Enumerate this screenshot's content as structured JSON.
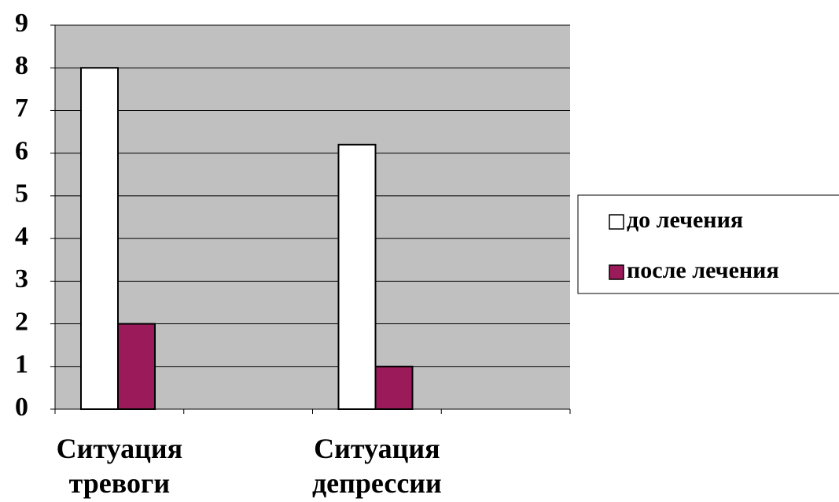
{
  "chart_data": {
    "type": "bar",
    "categories": [
      "Ситуация тревоги",
      null,
      "Ситуация депрессии",
      null
    ],
    "series": [
      {
        "name": "до лечения",
        "color": "#ffffff",
        "values": [
          8,
          null,
          6.2,
          null
        ]
      },
      {
        "name": "после лечения",
        "color": "#9b1b5a",
        "values": [
          2,
          null,
          1,
          null
        ]
      }
    ],
    "ylim": [
      0,
      9
    ],
    "yticks": [
      0,
      1,
      2,
      3,
      4,
      5,
      6,
      7,
      8,
      9
    ],
    "grid": true,
    "legend": "right"
  }
}
